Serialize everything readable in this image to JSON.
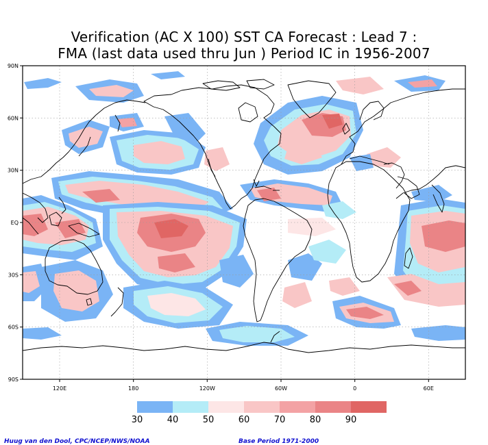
{
  "title": {
    "line1": "Verification (AC X 100) SST CA Forecast : Lead 7 :",
    "line2": "FMA (last data used thru Jun ) Period IC in 1956-2007"
  },
  "axes": {
    "lat_labels": [
      "90N",
      "60N",
      "30N",
      "EQ",
      "30S",
      "60S",
      "90S"
    ],
    "lon_labels": [
      "120E",
      "180",
      "120W",
      "60W",
      "0",
      "60E"
    ]
  },
  "legend": {
    "bins": [
      {
        "label": "30",
        "color": "#7ab4f5"
      },
      {
        "label": "40",
        "color": "#b4ecf7"
      },
      {
        "label": "50",
        "color": "#fde6e6"
      },
      {
        "label": "60",
        "color": "#f9c6c6"
      },
      {
        "label": "70",
        "color": "#f3a2a4"
      },
      {
        "label": "80",
        "color": "#ea8486"
      },
      {
        "label": "90",
        "color": "#e06664"
      }
    ]
  },
  "credits": {
    "left": "Huug van den Dool, CPC/NCEP/NWS/NOAA",
    "right": "Base Period 1971-2000"
  }
}
